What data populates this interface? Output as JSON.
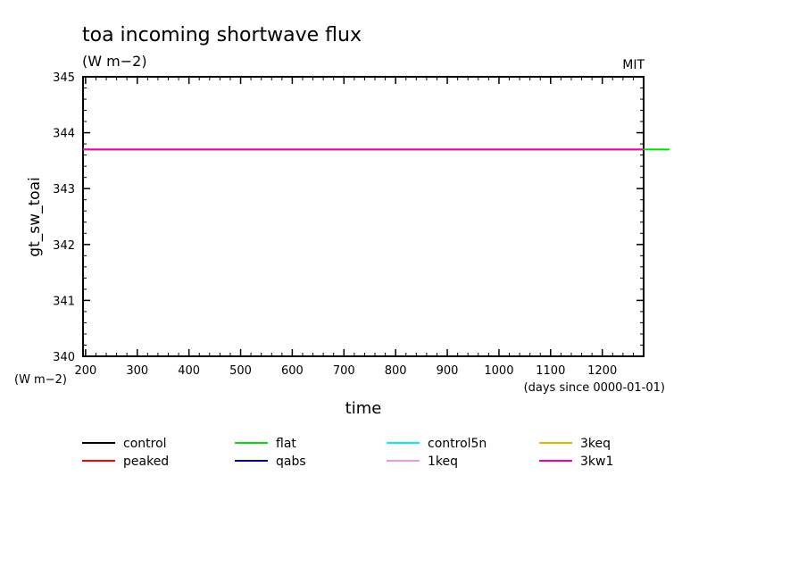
{
  "chart_data": {
    "type": "line",
    "title": "toa incoming shortwave flux",
    "subtitle": "(W m−2)",
    "corner_label": "MIT",
    "ylabel": "gt_sw_toai",
    "y_unit_label": "(W m−2)",
    "xlabel": "time",
    "x_unit_label": "(days since 0000-01-01)",
    "xlim": [
      195,
      1280
    ],
    "ylim": [
      340,
      345
    ],
    "x_ticks": [
      200,
      300,
      400,
      500,
      600,
      700,
      800,
      900,
      1000,
      1100,
      1200
    ],
    "y_ticks": [
      340,
      341,
      342,
      343,
      344,
      345
    ],
    "legend_position": "bottom",
    "series": [
      {
        "name": "control",
        "color": "#000000",
        "x": [],
        "y": []
      },
      {
        "name": "peaked",
        "color": "#ff0000",
        "x": [],
        "y": []
      },
      {
        "name": "flat",
        "color": "#00dd00",
        "x": [
          195,
          1330
        ],
        "y": [
          343.7,
          343.7
        ]
      },
      {
        "name": "qabs",
        "color": "#0000cc",
        "x": [],
        "y": []
      },
      {
        "name": "control5n",
        "color": "#00eeee",
        "x": [],
        "y": []
      },
      {
        "name": "1keq",
        "color": "#ee99dd",
        "x": [],
        "y": []
      },
      {
        "name": "3keq",
        "color": "#e6b000",
        "x": [],
        "y": []
      },
      {
        "name": "3kw1",
        "color": "#ee00aa",
        "x": [
          195,
          1280
        ],
        "y": [
          343.7,
          343.7
        ]
      }
    ]
  }
}
